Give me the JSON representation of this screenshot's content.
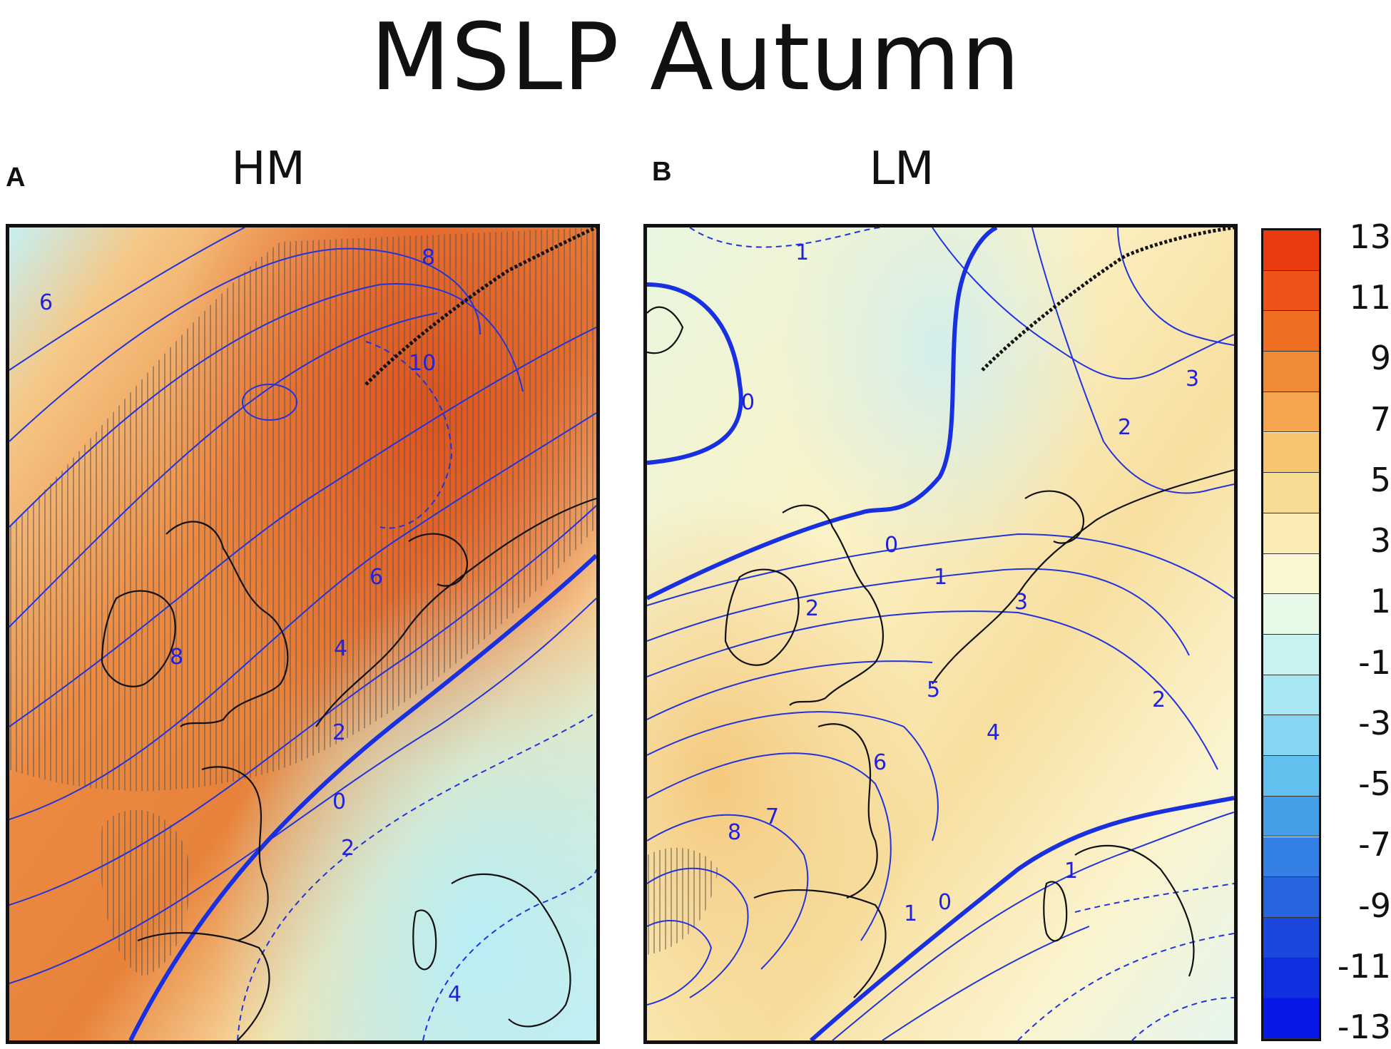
{
  "title": "MSLP Autumn",
  "panels": [
    {
      "letter": "A",
      "title": "HM"
    },
    {
      "letter": "B",
      "title": "LM"
    }
  ],
  "colorbar": {
    "labels": [
      "13",
      "11",
      "9",
      "7",
      "5",
      "3",
      "1",
      "-1",
      "-3",
      "-5",
      "-7",
      "-9",
      "-11",
      "-13"
    ],
    "colors": [
      "#ea3a10",
      "#ee5418",
      "#f06e22",
      "#f18a34",
      "#f4a64e",
      "#f7c470",
      "#f9dc94",
      "#fbecb6",
      "#fbf6d2",
      "#e6f8e6",
      "#c8f2f2",
      "#a8e6f4",
      "#86d6f2",
      "#62c0ee",
      "#449ee8",
      "#3480e4",
      "#2664e0",
      "#1a48dc",
      "#1030e0",
      "#0818e8"
    ]
  },
  "contour_labels": {
    "HM": [
      "6",
      "8",
      "10",
      "6",
      "8",
      "4",
      "2",
      "0",
      "2",
      "4"
    ],
    "LM": [
      "1",
      "0",
      "3",
      "2",
      "0",
      "1",
      "2",
      "3",
      "5",
      "4",
      "2",
      "6",
      "8",
      "7",
      "1",
      "0",
      "1"
    ]
  }
}
